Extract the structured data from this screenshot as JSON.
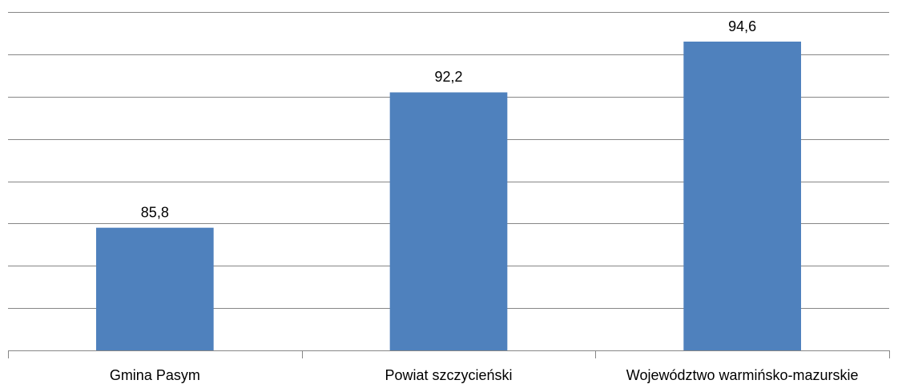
{
  "chart_data": {
    "type": "bar",
    "categories": [
      "Gmina Pasym",
      "Powiat szczycieński",
      "Województwo warmińsko-mazurskie"
    ],
    "values": [
      85.8,
      92.2,
      94.6
    ],
    "value_labels": [
      "85,8",
      "92,2",
      "94,6"
    ],
    "color": "#4f81bd",
    "ylim": [
      80,
      96
    ],
    "yticks": [
      80,
      82,
      84,
      86,
      88,
      90,
      92,
      94,
      96
    ],
    "grid": true
  }
}
